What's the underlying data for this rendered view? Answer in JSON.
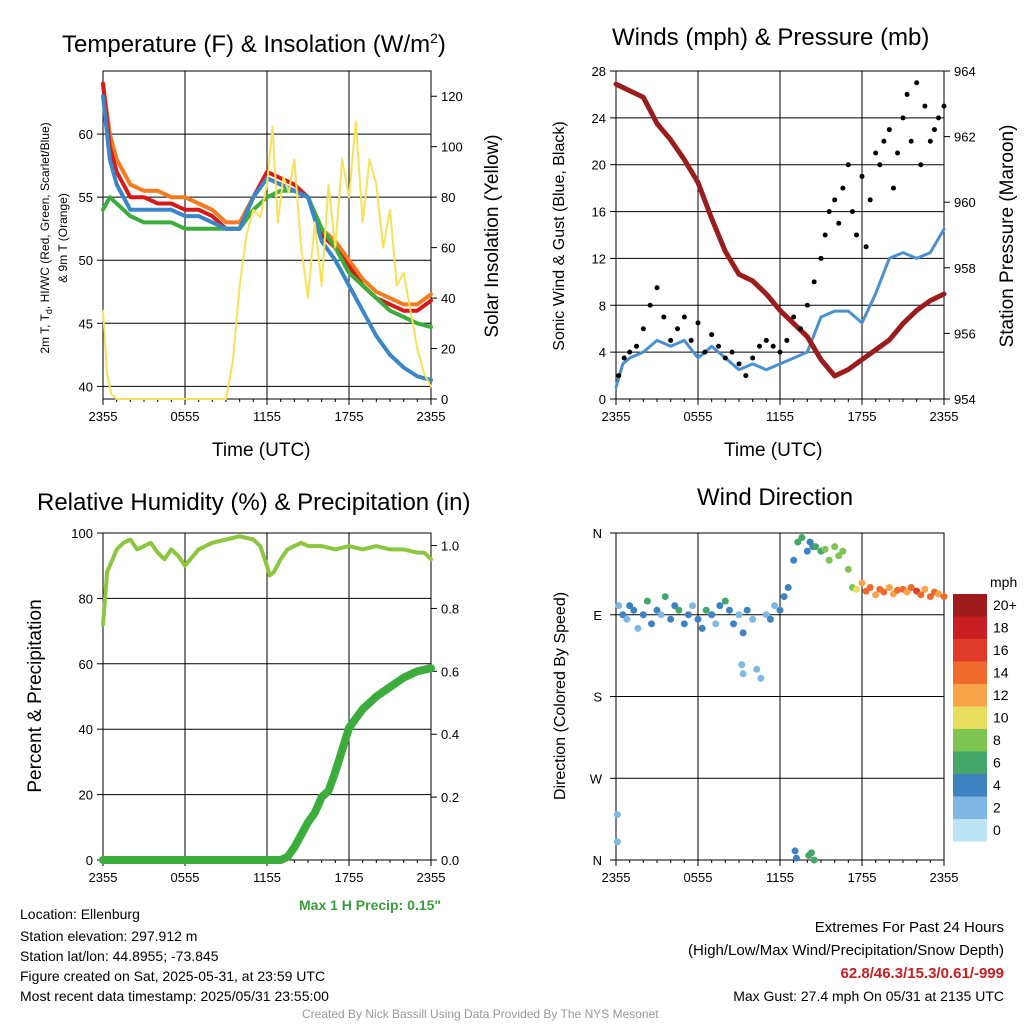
{
  "panels": {
    "temp": {
      "title": "Temperature (F) & Insolation (W/m",
      "title_sup": "2",
      "title_tail": ")",
      "ylabel_line1": "2m T, T",
      "ylabel_sub": "d",
      "ylabel_line1_tail": ", HI/WC (Red, Green, Scarlet/Blue)",
      "ylabel_line2": "& 9m T (Orange)",
      "y2label": "Solar Insolation (Yellow)",
      "xlabel": "Time (UTC)"
    },
    "wind": {
      "title": "Winds (mph) & Pressure (mb)",
      "ylabel": "Sonic Wind & Gust (Blue, Black)",
      "y2label": "Station Pressure (Maroon)",
      "xlabel": "Time (UTC)"
    },
    "rh": {
      "title": "Relative Humidity (%) & Precipitation (in)",
      "ylabel": "Percent & Precipitation",
      "max_precip": "Max 1 H Precip: 0.15\""
    },
    "dir": {
      "title": "Wind Direction",
      "ylabel": "Direction (Colored By Speed)",
      "legend_title": "mph",
      "legend_labels": [
        "20+",
        "18",
        "16",
        "14",
        "12",
        "10",
        "8",
        "6",
        "4",
        "2",
        "0"
      ],
      "legend_colors": [
        "#9e1a1d",
        "#c81e22",
        "#e03a2b",
        "#f06a2e",
        "#f7a34a",
        "#e8dd5c",
        "#7ec450",
        "#44a669",
        "#3f82c2",
        "#7fb8e4",
        "#bde3f7"
      ]
    }
  },
  "info": {
    "location": "Location: Ellenburg",
    "elevation": "Station elevation: 297.912 m",
    "latlon": "Station lat/lon: 44.8955; -73.845",
    "created": "Figure created on Sat, 2025-05-31, at 23:59 UTC",
    "recent": "Most recent data timestamp: 2025/05/31 23:55:00"
  },
  "extremes": {
    "title": "Extremes For Past 24 Hours",
    "subtitle": "(High/Low/Max Wind/Precipitation/Snow Depth)",
    "values": "62.8/46.3/15.3/0.61/-999",
    "gust": "Max Gust: 27.4 mph On 05/31 at 2135 UTC"
  },
  "credit": "Created By Nick Bassill Using Data Provided By The NYS Mesonet",
  "colors": {
    "temp2m": "#d7191c",
    "temp9m": "#f47b20",
    "dewpoint": "#3cad3c",
    "windchill": "#3a86c8",
    "solar": "#f7e05a",
    "wind": "#4a90d0",
    "gust": "#000000",
    "pressure": "#9b1c1c",
    "rh": "#8cc63f",
    "precip": "#3cad3c",
    "extremes": "#c81e22",
    "max_precip": "#3a9d3a"
  },
  "chart_data": [
    {
      "id": "temp",
      "type": "line",
      "x_ticks": [
        "2355",
        "0555",
        "1155",
        "1755",
        "2355"
      ],
      "x_hours": [
        0,
        6,
        12,
        18,
        24
      ],
      "ylim": [
        39,
        65
      ],
      "y_ticks": [
        40,
        45,
        50,
        55,
        60
      ],
      "y2lim": [
        0,
        130
      ],
      "y2_ticks": [
        0,
        20,
        40,
        60,
        80,
        100,
        120
      ],
      "series": [
        {
          "key": "temp9m",
          "axis": "y",
          "width": 4,
          "x": [
            0,
            0.5,
            1,
            2,
            3,
            4,
            5,
            6,
            7,
            8,
            9,
            10,
            11,
            12,
            13,
            14,
            15,
            16,
            17,
            18,
            19,
            20,
            21,
            22,
            23,
            24
          ],
          "y": [
            64,
            60,
            58,
            56,
            55.5,
            55.5,
            55,
            55,
            54.5,
            54,
            53,
            53,
            55,
            56.5,
            56,
            55.5,
            55,
            52.5,
            51.5,
            50,
            48.5,
            47.5,
            47,
            46.5,
            46.5,
            47.3
          ]
        },
        {
          "key": "temp2m",
          "axis": "y",
          "width": 4,
          "x": [
            0,
            0.5,
            1,
            2,
            3,
            4,
            5,
            6,
            7,
            8,
            9,
            10,
            11,
            12,
            13,
            14,
            15,
            16,
            17,
            18,
            19,
            20,
            21,
            22,
            23,
            24
          ],
          "y": [
            64,
            59,
            57,
            55,
            55,
            54.5,
            54.5,
            54,
            54,
            53.5,
            52.5,
            52.5,
            55,
            57,
            56.5,
            56,
            55,
            52,
            51,
            49.5,
            48,
            47,
            46.5,
            46,
            46,
            46.8
          ]
        },
        {
          "key": "dewpoint",
          "axis": "y",
          "width": 4,
          "x": [
            0,
            0.5,
            1,
            2,
            3,
            4,
            5,
            6,
            7,
            8,
            9,
            10,
            11,
            12,
            13,
            14,
            15,
            16,
            17,
            18,
            19,
            20,
            21,
            22,
            23,
            24
          ],
          "y": [
            54,
            55,
            54.5,
            53.5,
            53,
            53,
            53,
            52.5,
            52.5,
            52.5,
            52.5,
            52.5,
            54,
            55,
            55.5,
            55.5,
            55,
            52.5,
            51,
            49,
            48,
            47,
            46,
            45.5,
            45,
            44.7
          ]
        },
        {
          "key": "windchill",
          "axis": "y",
          "width": 4,
          "x": [
            0,
            0.5,
            1,
            2,
            3,
            4,
            5,
            6,
            7,
            8,
            9,
            10,
            11,
            12,
            13,
            14,
            15,
            16,
            17,
            18,
            19,
            20,
            21,
            22,
            23,
            24
          ],
          "y": [
            63,
            58,
            56,
            54,
            54,
            54,
            54,
            53.5,
            53.5,
            53,
            52.5,
            52.5,
            55,
            56.5,
            56,
            55.5,
            55,
            51.5,
            50,
            48,
            46,
            44,
            42.5,
            41.5,
            40.8,
            40.5
          ]
        },
        {
          "key": "solar",
          "axis": "y2",
          "width": 2,
          "x": [
            0,
            0.3,
            0.6,
            1,
            2,
            4,
            6,
            8,
            9,
            9.5,
            10,
            10.5,
            11,
            11.5,
            12,
            12.4,
            12.8,
            13.2,
            13.6,
            14,
            14.5,
            15,
            15.5,
            16,
            16.5,
            17,
            17.5,
            18,
            18.5,
            19,
            19.5,
            20,
            20.5,
            21,
            21.5,
            22,
            22.5,
            23,
            23.5,
            24
          ],
          "y": [
            35,
            10,
            2,
            0,
            0,
            0,
            0,
            0,
            0,
            15,
            45,
            65,
            75,
            72,
            85,
            108,
            70,
            88,
            82,
            95,
            60,
            40,
            70,
            45,
            85,
            60,
            95,
            80,
            110,
            70,
            95,
            85,
            60,
            75,
            45,
            50,
            35,
            20,
            10,
            5
          ]
        }
      ]
    },
    {
      "id": "wind",
      "type": "line",
      "x_ticks": [
        "2355",
        "0555",
        "1155",
        "1755",
        "2355"
      ],
      "x_hours": [
        0,
        6,
        12,
        18,
        24
      ],
      "ylim": [
        0,
        28
      ],
      "y_ticks": [
        0,
        4,
        8,
        12,
        16,
        20,
        24,
        28
      ],
      "y2lim": [
        954,
        964
      ],
      "y2_ticks": [
        954,
        956,
        958,
        960,
        962,
        964
      ],
      "series": [
        {
          "key": "wind",
          "axis": "y",
          "width": 3,
          "x": [
            0,
            0.5,
            1,
            2,
            3,
            4,
            5,
            6,
            7,
            8,
            9,
            10,
            11,
            12,
            13,
            14,
            15,
            16,
            17,
            18,
            19,
            20,
            21,
            22,
            23,
            24
          ],
          "y": [
            1,
            3,
            3.5,
            4,
            5,
            4.5,
            5,
            3.5,
            4.5,
            3.5,
            2.5,
            3,
            2.5,
            3,
            3.5,
            4,
            7,
            7.5,
            7.5,
            6.5,
            9,
            12,
            12.5,
            12,
            12.5,
            14.5
          ]
        },
        {
          "key": "pressure",
          "axis": "y2",
          "width": 5,
          "x": [
            0,
            1,
            2,
            3,
            4,
            5,
            6,
            7,
            8,
            9,
            10,
            11,
            12,
            13,
            14,
            15,
            16,
            17,
            18,
            19,
            20,
            21,
            22,
            23,
            24
          ],
          "y": [
            963.6,
            963.4,
            963.2,
            962.4,
            961.9,
            961.3,
            960.6,
            959.5,
            958.5,
            957.8,
            957.6,
            957.2,
            956.7,
            956.3,
            955.9,
            955.2,
            954.7,
            954.9,
            955.2,
            955.5,
            955.8,
            956.3,
            956.7,
            957.0,
            957.2
          ]
        },
        {
          "key": "gust",
          "axis": "y",
          "kind": "scatter",
          "x": [
            0.2,
            0.6,
            1,
            1.5,
            2,
            2.5,
            3,
            3.5,
            4,
            4.5,
            5,
            5.5,
            6,
            6.5,
            7,
            7.5,
            8,
            8.5,
            9,
            9.5,
            10,
            10.5,
            11,
            11.5,
            12,
            12.5,
            13,
            13.5,
            14,
            14.5,
            15,
            15.3,
            15.6,
            16,
            16.3,
            16.6,
            17,
            17.3,
            17.6,
            18,
            18.3,
            18.6,
            19,
            19.3,
            19.6,
            20,
            20.3,
            20.6,
            21,
            21.3,
            21.6,
            22,
            22.3,
            22.6,
            23,
            23.3,
            23.6,
            24
          ],
          "y": [
            2,
            3.5,
            4,
            4.5,
            6,
            8,
            9.5,
            7,
            5,
            6,
            7,
            5,
            6.5,
            4,
            5.5,
            4.5,
            3.5,
            4,
            3,
            2,
            3.5,
            4.5,
            5,
            4.5,
            4,
            5,
            7,
            6,
            8,
            10,
            12,
            14,
            16,
            17,
            15,
            18,
            20,
            16,
            14,
            19,
            13,
            17,
            21,
            20,
            22,
            23,
            18,
            21,
            24,
            26,
            22,
            27,
            20,
            25,
            22,
            23,
            24,
            25
          ]
        }
      ]
    },
    {
      "id": "rh",
      "type": "line",
      "x_ticks": [
        "2355",
        "0555",
        "1155",
        "1755",
        "2355"
      ],
      "x_hours": [
        0,
        6,
        12,
        18,
        24
      ],
      "ylim": [
        0,
        100
      ],
      "y_ticks": [
        0,
        20,
        40,
        60,
        80,
        100
      ],
      "y2lim": [
        0,
        1.04
      ],
      "y2_ticks": [
        "0.0",
        "0.2",
        "0.4",
        "0.6",
        "0.8",
        "1.0"
      ],
      "series": [
        {
          "key": "rh",
          "axis": "y",
          "width": 4,
          "x": [
            0,
            0.3,
            0.7,
            1,
            1.5,
            2,
            2.5,
            3,
            3.5,
            4,
            4.5,
            5,
            5.5,
            6,
            7,
            8,
            9,
            10,
            11,
            11.5,
            12,
            12.2,
            12.5,
            13,
            13.5,
            14,
            14.5,
            15,
            16,
            17,
            18,
            19,
            20,
            21,
            22,
            23,
            23.5,
            24
          ],
          "y": [
            72,
            88,
            92,
            95,
            97,
            98,
            95,
            96,
            97,
            94,
            92,
            95,
            93,
            90,
            95,
            97,
            98,
            99,
            98,
            96,
            90,
            87,
            88,
            92,
            95,
            96,
            97,
            96,
            96,
            95,
            96,
            95,
            96,
            95,
            95,
            94,
            94,
            92
          ]
        },
        {
          "key": "precip",
          "axis": "y2",
          "width": 8,
          "x": [
            0,
            2,
            4,
            6,
            8,
            10,
            12,
            13,
            13.5,
            14,
            14.5,
            15,
            15.5,
            16,
            16.5,
            17,
            17.5,
            18,
            18.5,
            19,
            19.5,
            20,
            21,
            22,
            23,
            24
          ],
          "y": [
            0,
            0,
            0,
            0,
            0,
            0,
            0,
            0,
            0.01,
            0.04,
            0.08,
            0.12,
            0.15,
            0.2,
            0.22,
            0.28,
            0.35,
            0.42,
            0.45,
            0.48,
            0.5,
            0.52,
            0.55,
            0.58,
            0.6,
            0.61
          ]
        }
      ]
    },
    {
      "id": "dir",
      "type": "scatter",
      "x_ticks": [
        "2355",
        "0555",
        "1155",
        "1755",
        "2355"
      ],
      "x_hours": [
        0,
        6,
        12,
        18,
        24
      ],
      "y_ticks": [
        "N",
        "W",
        "S",
        "E",
        "N"
      ],
      "ylim": [
        0,
        360
      ],
      "points": {
        "x": [
          0.2,
          0.5,
          0.8,
          1,
          1.3,
          1.6,
          2,
          2.3,
          2.6,
          3,
          3.3,
          3.6,
          4,
          4.3,
          4.6,
          5,
          5.3,
          5.6,
          6,
          6.3,
          6.6,
          7,
          7.3,
          7.6,
          8,
          8.3,
          8.6,
          9,
          9.3,
          9.6,
          10,
          10.3,
          10.6,
          11,
          11.3,
          11.6,
          12,
          12.3,
          12.6,
          13,
          13.3,
          13.6,
          14,
          14.2,
          14.4,
          14.6,
          15,
          15.3,
          15.6,
          16,
          16.3,
          16.6,
          17,
          17.3,
          17.6,
          18,
          18.3,
          18.6,
          19,
          19.3,
          19.6,
          20,
          20.3,
          20.6,
          21,
          21.3,
          21.6,
          22,
          22.3,
          22.6,
          23,
          23.3,
          23.6,
          24,
          0.1,
          0.1,
          9.2,
          9.3,
          13.1,
          14.1,
          14.5,
          13.2,
          14.3
        ],
        "y": [
          280,
          270,
          265,
          280,
          275,
          255,
          270,
          285,
          260,
          275,
          270,
          290,
          265,
          280,
          275,
          260,
          270,
          280,
          265,
          255,
          275,
          270,
          260,
          280,
          285,
          275,
          260,
          270,
          250,
          275,
          265,
          210,
          200,
          270,
          265,
          280,
          275,
          290,
          300,
          330,
          350,
          355,
          340,
          350,
          345,
          345,
          340,
          342,
          330,
          345,
          335,
          340,
          320,
          300,
          298,
          305,
          296,
          300,
          292,
          298,
          295,
          300,
          293,
          297,
          298,
          295,
          300,
          296,
          292,
          298,
          290,
          295,
          293,
          290,
          50,
          20,
          215,
          205,
          10,
          5,
          0,
          2,
          8
        ],
        "speed": [
          2,
          3,
          2,
          4,
          3,
          2,
          4,
          5,
          3,
          4,
          2,
          6,
          3,
          4,
          5,
          3,
          4,
          2,
          3,
          4,
          5,
          3,
          2,
          4,
          5,
          3,
          4,
          2,
          3,
          4,
          1,
          1,
          1,
          2,
          3,
          2,
          3,
          4,
          3,
          4,
          5,
          6,
          3,
          4,
          4,
          5,
          6,
          7,
          8,
          8,
          7,
          8,
          7,
          8,
          9,
          12,
          14,
          13,
          12,
          14,
          13,
          12,
          11,
          14,
          13,
          12,
          14,
          15,
          13,
          12,
          14,
          13,
          12,
          14,
          1,
          1,
          1,
          1,
          3,
          5,
          6,
          4,
          5
        ]
      }
    }
  ]
}
